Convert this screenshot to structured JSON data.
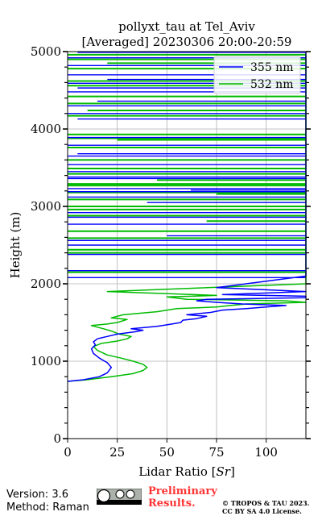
{
  "chart_data": {
    "type": "line",
    "title_line1": "pollyxt_tau at Tel_Aviv",
    "title_line2": "[Averaged] 20230306 20:00-20:59",
    "xlabel_prefix": "Lidar Ratio [",
    "xlabel_unit": "Sr",
    "xlabel_suffix": "]",
    "ylabel": "Height (m)",
    "xlim": [
      0,
      120
    ],
    "ylim": [
      0,
      5000
    ],
    "xticks": [
      0,
      25,
      50,
      75,
      100
    ],
    "xtick_labels": [
      "0",
      "25",
      "50",
      "75",
      "100"
    ],
    "yticks": [
      0,
      1000,
      2000,
      3000,
      4000,
      5000
    ],
    "ytick_labels": [
      "0",
      "1000",
      "2000",
      "3000",
      "4000",
      "5000"
    ],
    "grid": true,
    "legend_position": "top-right",
    "series": [
      {
        "name": "355 nm",
        "color": "#0000ff",
        "points": [
          [
            0,
            740
          ],
          [
            8,
            760
          ],
          [
            16,
            800
          ],
          [
            20,
            850
          ],
          [
            22,
            920
          ],
          [
            20,
            980
          ],
          [
            16,
            1040
          ],
          [
            13,
            1100
          ],
          [
            12,
            1160
          ],
          [
            14,
            1210
          ],
          [
            13,
            1250
          ],
          [
            15,
            1290
          ],
          [
            20,
            1320
          ],
          [
            25,
            1350
          ],
          [
            34,
            1380
          ],
          [
            38,
            1400
          ],
          [
            32,
            1420
          ],
          [
            45,
            1450
          ],
          [
            50,
            1470
          ],
          [
            57,
            1500
          ],
          [
            58,
            1530
          ],
          [
            65,
            1550
          ],
          [
            70,
            1580
          ],
          [
            60,
            1600
          ],
          [
            72,
            1630
          ],
          [
            78,
            1660
          ],
          [
            90,
            1680
          ],
          [
            100,
            1700
          ],
          [
            110,
            1720
          ],
          [
            88,
            1740
          ],
          [
            75,
            1760
          ],
          [
            65,
            1780
          ],
          [
            70,
            1800
          ],
          [
            120,
            1820
          ],
          [
            120,
            1840
          ],
          [
            78,
            1860
          ],
          [
            120,
            1900
          ],
          [
            75,
            1950
          ],
          [
            120,
            2100
          ],
          [
            120,
            2200
          ],
          [
            120,
            2600
          ],
          [
            120,
            3100
          ],
          [
            120,
            3600
          ],
          [
            120,
            4100
          ],
          [
            120,
            4600
          ],
          [
            120,
            4990
          ]
        ]
      },
      {
        "name": "532 nm",
        "color": "#00bb00",
        "points": [
          [
            0,
            740
          ],
          [
            10,
            760
          ],
          [
            22,
            800
          ],
          [
            33,
            840
          ],
          [
            38,
            880
          ],
          [
            40,
            920
          ],
          [
            38,
            960
          ],
          [
            33,
            1000
          ],
          [
            27,
            1040
          ],
          [
            20,
            1080
          ],
          [
            15,
            1140
          ],
          [
            13,
            1190
          ],
          [
            17,
            1230
          ],
          [
            25,
            1260
          ],
          [
            30,
            1290
          ],
          [
            32,
            1320
          ],
          [
            26,
            1350
          ],
          [
            22,
            1390
          ],
          [
            18,
            1420
          ],
          [
            12,
            1460
          ],
          [
            20,
            1480
          ],
          [
            25,
            1500
          ],
          [
            30,
            1540
          ],
          [
            22,
            1560
          ],
          [
            28,
            1600
          ],
          [
            45,
            1640
          ],
          [
            55,
            1680
          ],
          [
            75,
            1700
          ],
          [
            82,
            1720
          ],
          [
            90,
            1740
          ],
          [
            120,
            1760
          ],
          [
            110,
            1780
          ],
          [
            60,
            1800
          ],
          [
            50,
            1830
          ],
          [
            75,
            1850
          ],
          [
            20,
            1900
          ],
          [
            120,
            2000
          ],
          [
            120,
            2400
          ],
          [
            120,
            2900
          ],
          [
            120,
            3400
          ],
          [
            120,
            3900
          ],
          [
            120,
            4400
          ],
          [
            120,
            4950
          ]
        ]
      }
    ],
    "segments_355": [
      [
        5,
        4990
      ],
      [
        0,
        4920
      ],
      [
        0,
        4820
      ],
      [
        0,
        4700
      ],
      [
        20,
        4640
      ],
      [
        0,
        4590
      ],
      [
        5,
        4530
      ],
      [
        0,
        4480
      ],
      [
        15,
        4360
      ],
      [
        0,
        4300
      ],
      [
        0,
        4200
      ],
      [
        5,
        4130
      ],
      [
        0,
        3890
      ],
      [
        0,
        3790
      ],
      [
        5,
        3680
      ],
      [
        0,
        3650
      ],
      [
        0,
        3540
      ],
      [
        0,
        3450
      ],
      [
        0,
        3380
      ],
      [
        0,
        3360
      ],
      [
        0,
        3230
      ],
      [
        62,
        3210
      ],
      [
        0,
        3190
      ],
      [
        0,
        3120
      ],
      [
        40,
        3050
      ],
      [
        0,
        2920
      ],
      [
        0,
        2860
      ],
      [
        0,
        2770
      ],
      [
        50,
        2620
      ],
      [
        0,
        2560
      ],
      [
        0,
        2500
      ],
      [
        0,
        2380
      ],
      [
        0,
        2170
      ],
      [
        0,
        2080
      ]
    ],
    "segments_532": [
      [
        0,
        4960
      ],
      [
        0,
        4900
      ],
      [
        20,
        4850
      ],
      [
        0,
        4780
      ],
      [
        0,
        4620
      ],
      [
        0,
        4560
      ],
      [
        0,
        4420
      ],
      [
        0,
        4330
      ],
      [
        10,
        4240
      ],
      [
        0,
        4170
      ],
      [
        0,
        3930
      ],
      [
        0,
        3880
      ],
      [
        25,
        3860
      ],
      [
        0,
        3760
      ],
      [
        0,
        3600
      ],
      [
        0,
        3490
      ],
      [
        0,
        3420
      ],
      [
        45,
        3340
      ],
      [
        0,
        3290
      ],
      [
        0,
        3270
      ],
      [
        0,
        3180
      ],
      [
        75,
        3160
      ],
      [
        0,
        3090
      ],
      [
        0,
        3000
      ],
      [
        0,
        2960
      ],
      [
        0,
        2880
      ],
      [
        70,
        2810
      ],
      [
        0,
        2680
      ],
      [
        0,
        2590
      ],
      [
        0,
        2440
      ],
      [
        0,
        2400
      ],
      [
        0,
        2150
      ]
    ]
  },
  "legend": {
    "items": [
      "355 nm",
      "532 nm"
    ]
  },
  "footer": {
    "version": "Version: 3.6",
    "method": "Method: Raman",
    "prelim_line1": "Preliminary",
    "prelim_line2": "Results.",
    "copyright_line1": "© TROPOS & TAU 2023.",
    "copyright_line2": "CC BY SA 4.0 License."
  },
  "colors": {
    "series_355": "#0000ff",
    "series_532": "#00bb00",
    "prelim": "#ff3333"
  }
}
